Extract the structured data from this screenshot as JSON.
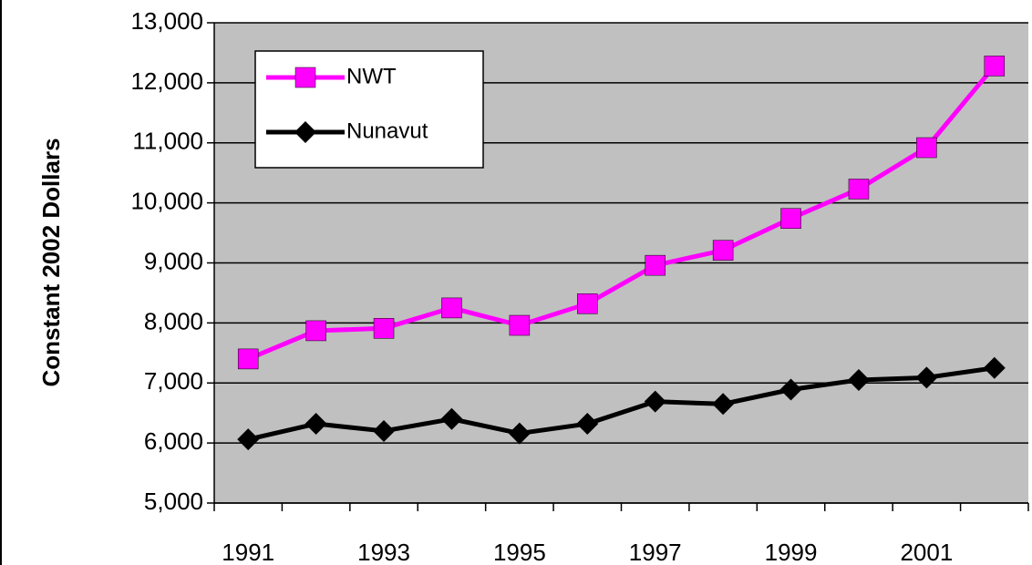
{
  "chart_data": {
    "type": "line",
    "y_label": "Constant 2002 Dollars",
    "categories": [
      "1991",
      null,
      "1993",
      null,
      "1995",
      null,
      "1997",
      null,
      "1999",
      null,
      "2001",
      null
    ],
    "series": [
      {
        "name": "NWT",
        "color": "#ff00ff",
        "marker": "square",
        "values": [
          7400,
          7870,
          7910,
          8250,
          7960,
          8320,
          8960,
          9210,
          9740,
          10230,
          10920,
          12280
        ]
      },
      {
        "name": "Nunavut",
        "color": "#000000",
        "marker": "diamond",
        "values": [
          6060,
          6320,
          6200,
          6400,
          6160,
          6320,
          6690,
          6650,
          6890,
          7050,
          7090,
          7250
        ]
      }
    ],
    "ylim": [
      5000,
      13000
    ],
    "yticks": [
      {
        "value": 5000,
        "label": "5,000"
      },
      {
        "value": 6000,
        "label": "6,000"
      },
      {
        "value": 7000,
        "label": "7,000"
      },
      {
        "value": 8000,
        "label": "8,000"
      },
      {
        "value": 9000,
        "label": "9,000"
      },
      {
        "value": 10000,
        "label": "10,000"
      },
      {
        "value": 11000,
        "label": "11,000"
      },
      {
        "value": 12000,
        "label": "12,000"
      },
      {
        "value": 13000,
        "label": "13,000"
      }
    ],
    "grid": true,
    "legend": "upper left",
    "plot_background": "#c0c0c0"
  }
}
